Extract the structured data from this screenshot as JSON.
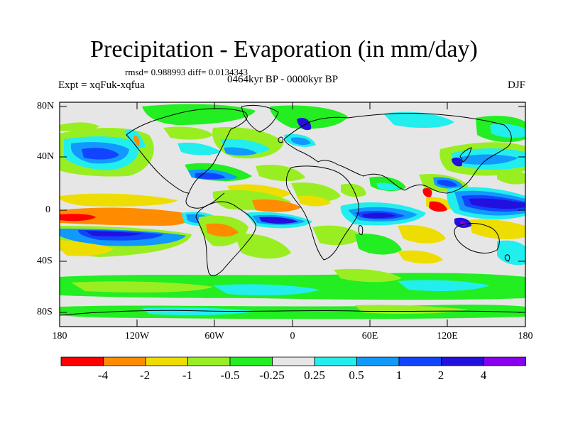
{
  "title": "Precipitation - Evaporation (in mm/day)",
  "stats": "rmsd= 0.988993 diff= 0.0134343",
  "left_label": "Expt = xqFuk-xqfua",
  "center_label": "0464kyr BP - 0000kyr BP",
  "right_label": "DJF",
  "y_ticks": [
    "80N",
    "40N",
    "0",
    "40S",
    "80S"
  ],
  "x_ticks": [
    "180",
    "120W",
    "60W",
    "0",
    "60E",
    "120E",
    "180"
  ],
  "colorbar": {
    "labels": [
      "-4",
      "-2",
      "-1",
      "-0.5",
      "-0.25",
      "0.25",
      "0.5",
      "1",
      "2",
      "4"
    ],
    "colors": [
      "#ff0000",
      "#ff8c00",
      "#eedd00",
      "#99ee22",
      "#22ee22",
      "#e6e6e6",
      "#22eeee",
      "#1199ff",
      "#1144ff",
      "#2211dd",
      "#8800ee"
    ]
  },
  "map": {
    "background": "#e6e6e6",
    "palette": {
      "red": "#ff0000",
      "orange": "#ff8c00",
      "yellow": "#eedd00",
      "lime": "#99ee22",
      "green": "#22ee22",
      "cyan": "#22eeee",
      "sky": "#1199ff",
      "blue": "#1144ff",
      "navy": "#2211dd",
      "purple": "#8800ee"
    }
  }
}
